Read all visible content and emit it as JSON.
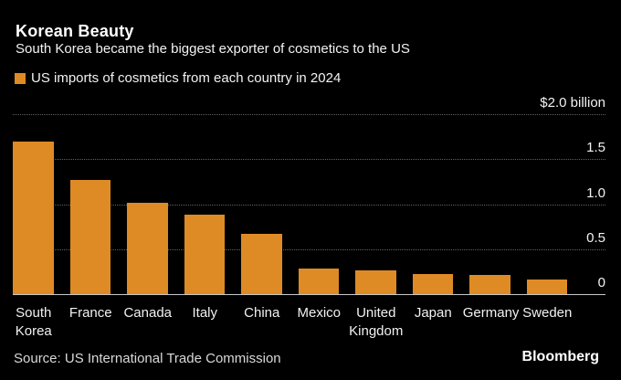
{
  "header": {
    "title": "Korean Beauty",
    "subtitle": "South Korea became the biggest exporter of cosmetics to the US"
  },
  "legend": {
    "label": "US imports of cosmetics from each country in 2024",
    "swatch_color": "#de8b25"
  },
  "chart_data": {
    "type": "bar",
    "title": "Korean Beauty",
    "subtitle": "South Korea became the biggest exporter of cosmetics to the US",
    "legend_label": "US imports of cosmetics from each country in 2024",
    "legend_position": "top-left",
    "categories": [
      "South Korea",
      "France",
      "Canada",
      "Italy",
      "China",
      "Mexico",
      "United Kingdom",
      "Japan",
      "Germany",
      "Sweden"
    ],
    "values": [
      1.7,
      1.27,
      1.02,
      0.88,
      0.67,
      0.28,
      0.26,
      0.22,
      0.21,
      0.16
    ],
    "xlabel": "",
    "ylabel": "",
    "ylim": [
      0,
      2.0
    ],
    "yticks": [
      {
        "value": 2.0,
        "label": "$2.0 billion"
      },
      {
        "value": 1.5,
        "label": "1.5"
      },
      {
        "value": 1.0,
        "label": "1.0"
      },
      {
        "value": 0.5,
        "label": "0.5"
      },
      {
        "value": 0,
        "label": "0"
      }
    ],
    "grid": "dotted horizontal gridlines",
    "bar_color": "#de8b25",
    "background_color": "#000000"
  },
  "footer": {
    "source": "Source: US International Trade Commission",
    "brand": "Bloomberg"
  }
}
